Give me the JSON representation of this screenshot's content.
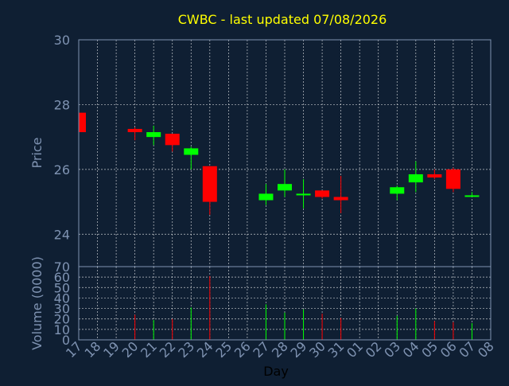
{
  "chart_data": {
    "type": "candlestick",
    "title": "CWBC - last updated 07/08/2026",
    "xlabel": "Day",
    "price_panel": {
      "ylabel": "Price",
      "ylim": [
        23.0,
        30.0
      ],
      "yticks": [
        24,
        26,
        28,
        30
      ],
      "grid": true
    },
    "volume_panel": {
      "ylabel": "Volume (0000)",
      "ylim": [
        0,
        70
      ],
      "yticks": [
        0,
        10,
        20,
        30,
        40,
        50,
        60,
        70
      ],
      "grid": true
    },
    "colors": {
      "background": "#0f1f33",
      "axis_text": "#7f93b2",
      "title": "#ffff00",
      "up": "#00ff00",
      "down": "#ff0000",
      "grid": "#ffffff"
    },
    "x_labels": [
      "17",
      "18",
      "19",
      "20",
      "21",
      "22",
      "23",
      "24",
      "25",
      "26",
      "27",
      "28",
      "29",
      "30",
      "31",
      "01",
      "02",
      "03",
      "04",
      "05",
      "06",
      "07",
      "08"
    ],
    "candles": [
      {
        "x": "17",
        "open": 27.75,
        "high": 27.75,
        "low": 27.15,
        "close": 27.15,
        "volume": 0
      },
      {
        "x": "20",
        "open": 27.25,
        "high": 27.3,
        "low": 26.9,
        "close": 27.15,
        "volume": 24
      },
      {
        "x": "21",
        "open": 27.0,
        "high": 27.35,
        "low": 26.75,
        "close": 27.15,
        "volume": 19
      },
      {
        "x": "22",
        "open": 27.1,
        "high": 27.1,
        "low": 26.55,
        "close": 26.75,
        "volume": 20
      },
      {
        "x": "23",
        "open": 26.45,
        "high": 26.7,
        "low": 26.0,
        "close": 26.65,
        "volume": 31
      },
      {
        "x": "24",
        "open": 26.1,
        "high": 26.1,
        "low": 24.6,
        "close": 25.0,
        "volume": 61
      },
      {
        "x": "27",
        "open": 25.05,
        "high": 25.55,
        "low": 24.9,
        "close": 25.25,
        "volume": 34
      },
      {
        "x": "28",
        "open": 25.35,
        "high": 26.0,
        "low": 25.15,
        "close": 25.55,
        "volume": 26
      },
      {
        "x": "29",
        "open": 25.2,
        "high": 25.7,
        "low": 24.8,
        "close": 25.25,
        "volume": 29
      },
      {
        "x": "30",
        "open": 25.35,
        "high": 25.35,
        "low": 25.1,
        "close": 25.15,
        "volume": 25
      },
      {
        "x": "31",
        "open": 25.15,
        "high": 25.8,
        "low": 24.65,
        "close": 25.05,
        "volume": 21
      },
      {
        "x": "03",
        "open": 25.25,
        "high": 25.5,
        "low": 25.05,
        "close": 25.45,
        "volume": 23
      },
      {
        "x": "04",
        "open": 25.6,
        "high": 26.25,
        "low": 25.3,
        "close": 25.85,
        "volume": 30
      },
      {
        "x": "05",
        "open": 25.85,
        "high": 26.0,
        "low": 25.7,
        "close": 25.75,
        "volume": 18
      },
      {
        "x": "06",
        "open": 26.0,
        "high": 26.05,
        "low": 25.3,
        "close": 25.4,
        "volume": 17
      },
      {
        "x": "07",
        "open": 25.2,
        "high": 25.3,
        "low": 25.15,
        "close": 25.2,
        "volume": 16
      }
    ]
  }
}
